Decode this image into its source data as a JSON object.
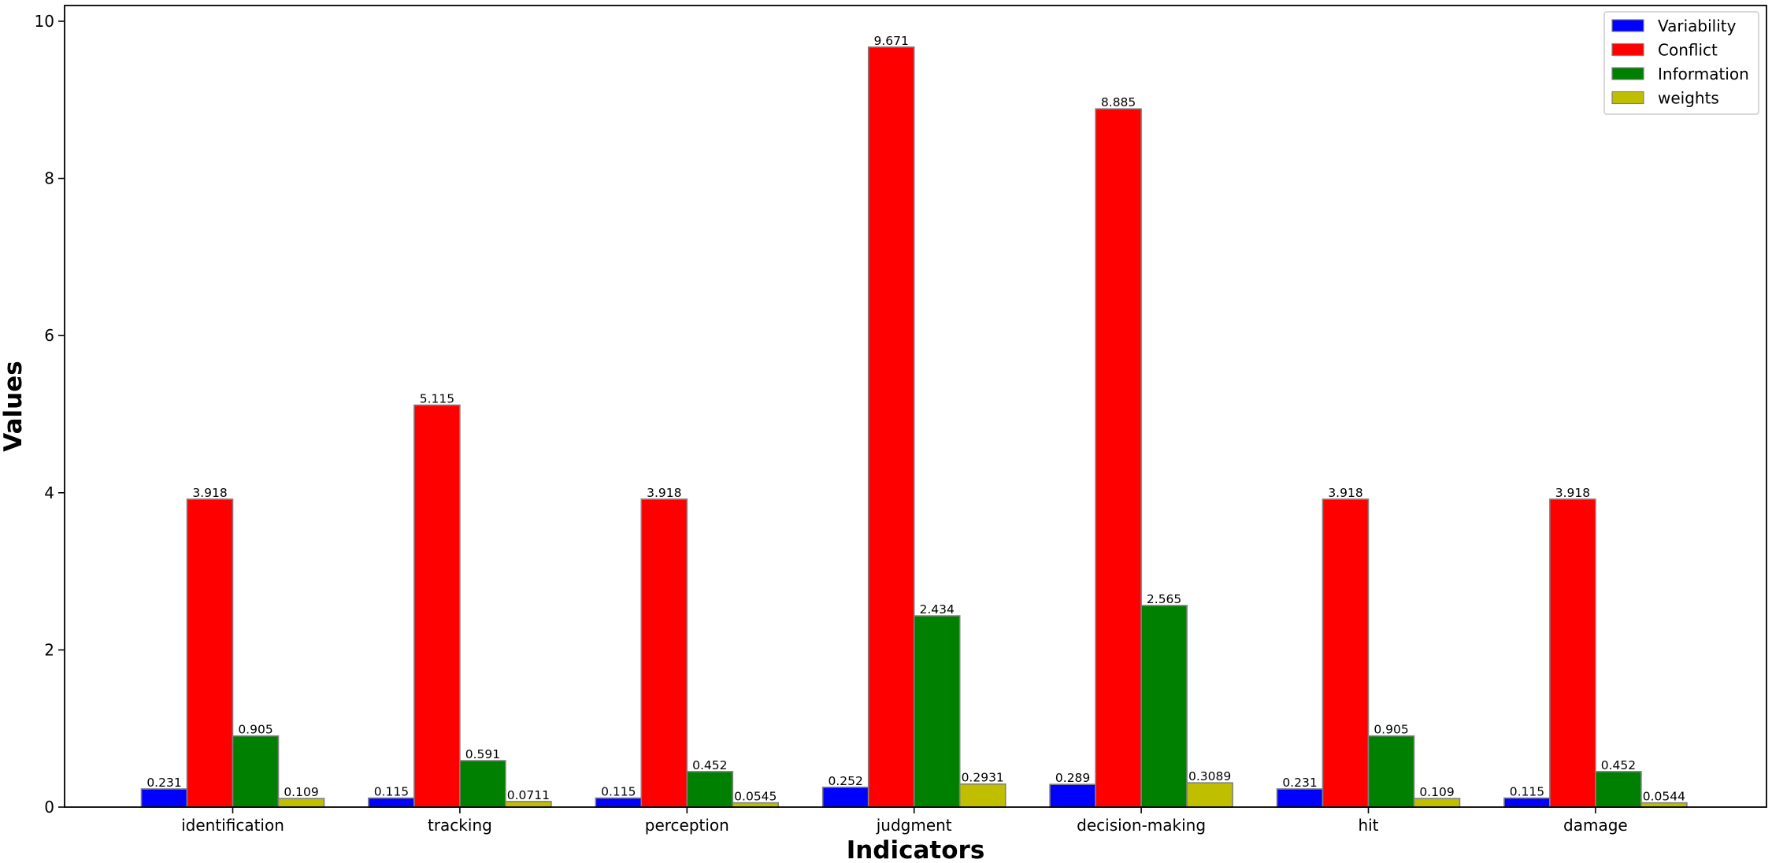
{
  "chart_data": {
    "type": "bar",
    "xlabel": "Indicators",
    "ylabel": "Values",
    "ylim": [
      0,
      10.2
    ],
    "yticks": [
      "0",
      "2",
      "4",
      "6",
      "8",
      "10"
    ],
    "categories": [
      "identification",
      "tracking",
      "perception",
      "judgment",
      "decision-making",
      "hit",
      "damage"
    ],
    "series": [
      {
        "name": "Variability",
        "color": "#0000ff",
        "values": [
          0.231,
          0.115,
          0.115,
          0.252,
          0.289,
          0.231,
          0.115
        ],
        "labels": [
          "0.231",
          "0.115",
          "0.115",
          "0.252",
          "0.289",
          "0.231",
          "0.115"
        ]
      },
      {
        "name": "Conflict",
        "color": "#ff0000",
        "values": [
          3.918,
          5.115,
          3.918,
          9.671,
          8.885,
          3.918,
          3.918
        ],
        "labels": [
          "3.918",
          "5.115",
          "3.918",
          "9.671",
          "8.885",
          "3.918",
          "3.918"
        ]
      },
      {
        "name": "Information",
        "color": "#008000",
        "values": [
          0.905,
          0.591,
          0.452,
          2.434,
          2.565,
          0.905,
          0.452
        ],
        "labels": [
          "0.905",
          "0.591",
          "0.452",
          "2.434",
          "2.565",
          "0.905",
          "0.452"
        ]
      },
      {
        "name": "weights",
        "color": "#bfbf00",
        "values": [
          0.109,
          0.0711,
          0.0545,
          0.2931,
          0.3089,
          0.109,
          0.0544
        ],
        "labels": [
          "0.109",
          "0.0711",
          "0.0545",
          "0.2931",
          "0.3089",
          "0.109",
          "0.0544"
        ]
      }
    ],
    "bar_edge_color": "#808080",
    "legend_position": "top-right",
    "grid": false
  }
}
